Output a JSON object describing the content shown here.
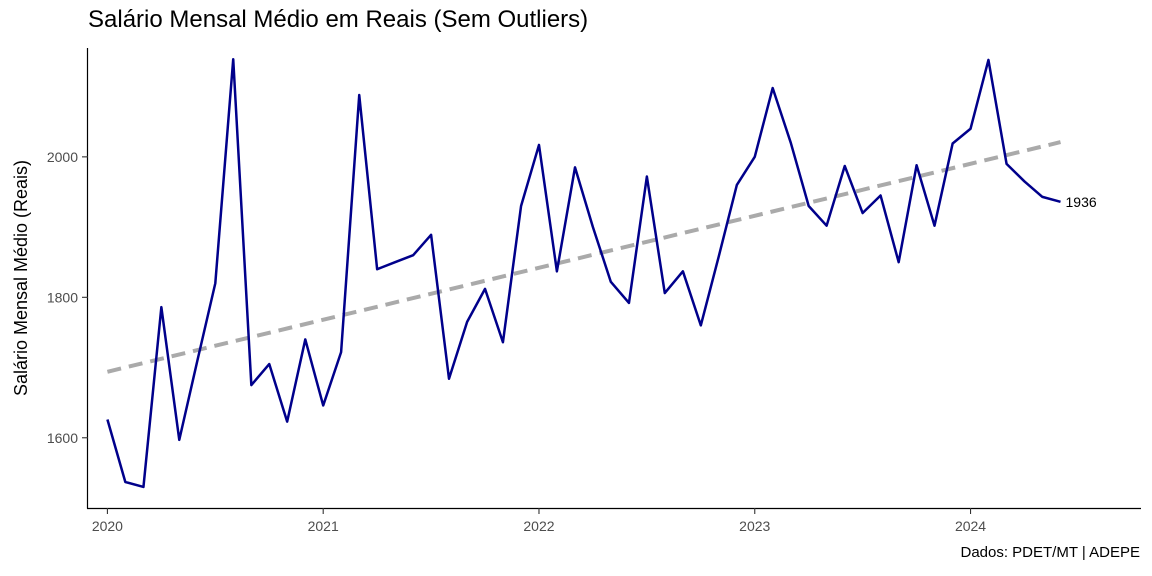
{
  "chart_data": {
    "type": "line",
    "title": "Salário Mensal Médio em Reais (Sem Outliers)",
    "caption": "Dados: PDET/MT | ADEPE",
    "xlabel": "",
    "ylabel": "Salário Mensal Médio (Reais)",
    "xlim": [
      2019.91,
      2024.79
    ],
    "ylim": [
      1500,
      2155
    ],
    "x_ticks": [
      2020,
      2021,
      2022,
      2023,
      2024
    ],
    "x_tick_labels": [
      "2020",
      "2021",
      "2022",
      "2023",
      "2024"
    ],
    "y_ticks": [
      1600,
      1800,
      2000
    ],
    "y_tick_labels": [
      "1600",
      "1800",
      "2000"
    ],
    "grid": false,
    "legend": "none",
    "series": [
      {
        "role": "observed",
        "color": "#00008B",
        "x": [
          2020.0,
          2020.083,
          2020.167,
          2020.25,
          2020.333,
          2020.417,
          2020.5,
          2020.583,
          2020.667,
          2020.75,
          2020.833,
          2020.917,
          2021.0,
          2021.083,
          2021.167,
          2021.25,
          2021.333,
          2021.417,
          2021.5,
          2021.583,
          2021.667,
          2021.75,
          2021.833,
          2021.917,
          2022.0,
          2022.083,
          2022.167,
          2022.25,
          2022.333,
          2022.417,
          2022.5,
          2022.583,
          2022.667,
          2022.75,
          2022.833,
          2022.917,
          2023.0,
          2023.083,
          2023.167,
          2023.25,
          2023.333,
          2023.417,
          2023.5,
          2023.583,
          2023.667,
          2023.75,
          2023.833,
          2023.917,
          2024.0,
          2024.083,
          2024.167,
          2024.25,
          2024.333,
          2024.417
        ],
        "values": [
          1626,
          1537,
          1530,
          1786,
          1597,
          1710,
          1820,
          2139,
          1675,
          1705,
          1623,
          1740,
          1646,
          1722,
          2088,
          1840,
          1850,
          1860,
          1889,
          1684,
          1765,
          1812,
          1736,
          1930,
          2017,
          1837,
          1985,
          1900,
          1822,
          1792,
          1972,
          1806,
          1837,
          1760,
          1858,
          1960,
          2000,
          2098,
          2020,
          1930,
          1902,
          1987,
          1920,
          1945,
          1850,
          1988,
          1902,
          2019,
          2040,
          2138,
          1990,
          1965,
          1943,
          1936
        ]
      },
      {
        "role": "trend",
        "color": "#AAAAAA",
        "x": [
          2020.0,
          2024.417
        ],
        "values": [
          1694,
          2021
        ]
      }
    ],
    "annotations": [
      {
        "text": "1936",
        "x": 2024.417,
        "y": 1936
      }
    ]
  }
}
